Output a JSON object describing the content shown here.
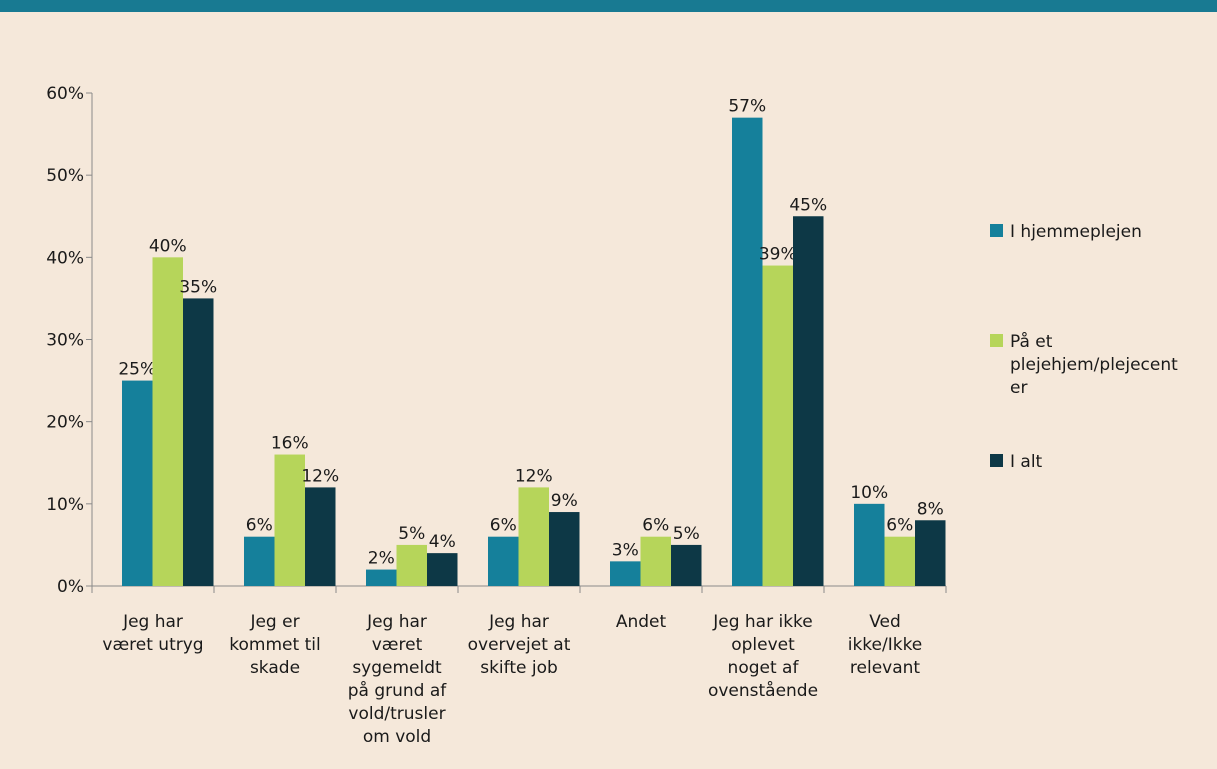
{
  "theme": {
    "background": "#f5e8da",
    "top_bar": "#187a92",
    "axis": "#8a8a8a"
  },
  "chart_data": {
    "type": "bar",
    "categories": [
      [
        "Jeg har",
        "været utryg"
      ],
      [
        "Jeg er",
        "kommet til",
        "skade"
      ],
      [
        "Jeg har",
        "været",
        "sygemeldt",
        "på grund af",
        "vold/trusler",
        "om vold"
      ],
      [
        "Jeg har",
        "overvejet at",
        "skifte job"
      ],
      [
        "Andet"
      ],
      [
        "Jeg har ikke",
        "oplevet",
        "noget af",
        "ovenstående"
      ],
      [
        "Ved",
        "ikke/Ikke",
        "relevant"
      ]
    ],
    "series": [
      {
        "name": "I hjemmeplejen",
        "color": "#15809b",
        "values": [
          25,
          6,
          2,
          6,
          3,
          57,
          10
        ],
        "labels": [
          "25%",
          "6%",
          "2%",
          "6%",
          "3%",
          "57%",
          "10%"
        ]
      },
      {
        "name": "På et plejehjem/plejecenter",
        "color": "#b6d55a",
        "values": [
          40,
          16,
          5,
          12,
          6,
          39,
          6
        ],
        "labels": [
          "40%",
          "16%",
          "5%",
          "12%",
          "6%",
          "39%",
          "6%"
        ]
      },
      {
        "name": "I alt",
        "color": "#0d3846",
        "values": [
          35,
          12,
          4,
          9,
          5,
          45,
          8
        ],
        "labels": [
          "35%",
          "12%",
          "4%",
          "9%",
          "5%",
          "45%",
          "8%"
        ]
      }
    ],
    "legend_lines": [
      [
        "I hjemmeplejen"
      ],
      [
        "På et",
        "plejehjem/plejecent",
        "er"
      ],
      [
        "I alt"
      ]
    ],
    "legend_position": "right",
    "yticks": [
      "0%",
      "10%",
      "20%",
      "30%",
      "40%",
      "50%",
      "60%"
    ],
    "ylim": [
      0,
      60
    ],
    "grid": false
  }
}
